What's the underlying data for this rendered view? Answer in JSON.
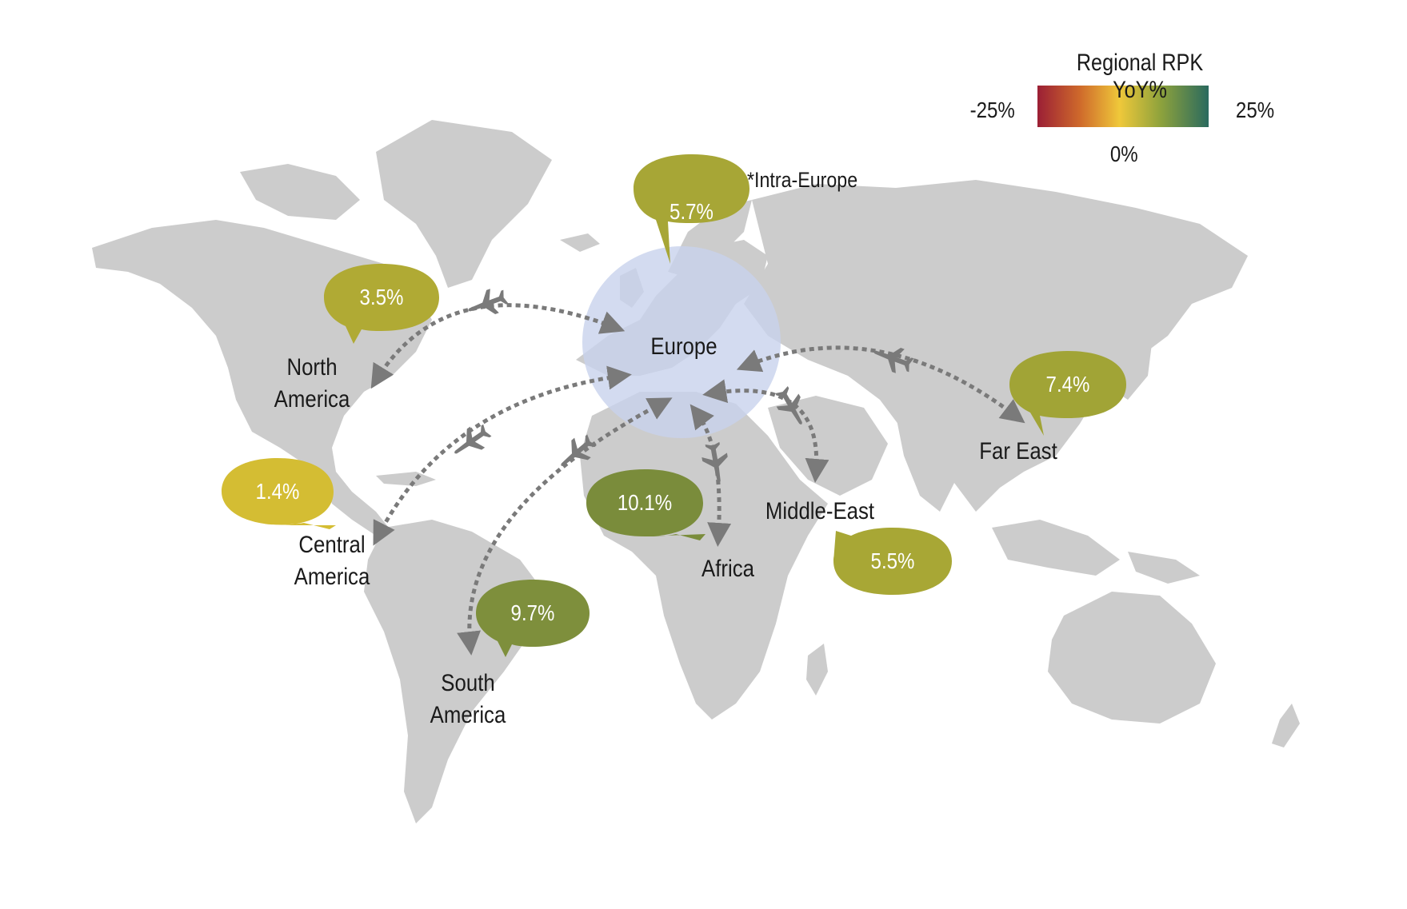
{
  "legend": {
    "title": "Regional RPK YoY%",
    "min_label": "-25%",
    "mid_label": "0%",
    "max_label": "25%",
    "gradient_colors": [
      "#9b1f35",
      "#c9562c",
      "#e8a52a",
      "#efc83a",
      "#b7b93a",
      "#6b9a3f",
      "#2a6a5e"
    ]
  },
  "note": "*Intra-Europe",
  "hub": {
    "name": "Europe",
    "color": "#c8d2ec"
  },
  "land_color": "#cccccc",
  "arrow_color": "#7a7a7a",
  "regions": [
    {
      "name": "North America",
      "line1": "North",
      "line2": "America",
      "value": "3.5%",
      "color": "#b0aa34"
    },
    {
      "name": "Central America",
      "line1": "Central",
      "line2": "America",
      "value": "1.4%",
      "color": "#d4bd33"
    },
    {
      "name": "South America",
      "line1": "South",
      "line2": "America",
      "value": "9.7%",
      "color": "#7e8f3c"
    },
    {
      "name": "Africa",
      "line1": "Africa",
      "line2": "",
      "value": "10.1%",
      "color": "#7a8c3b"
    },
    {
      "name": "Middle-East",
      "line1": "Middle-East",
      "line2": "",
      "value": "5.5%",
      "color": "#a8a735"
    },
    {
      "name": "Far East",
      "line1": "Far East",
      "line2": "",
      "value": "7.4%",
      "color": "#a1a436"
    },
    {
      "name": "Europe",
      "line1": "",
      "line2": "",
      "value": "5.7%",
      "color": "#a7a636"
    }
  ]
}
